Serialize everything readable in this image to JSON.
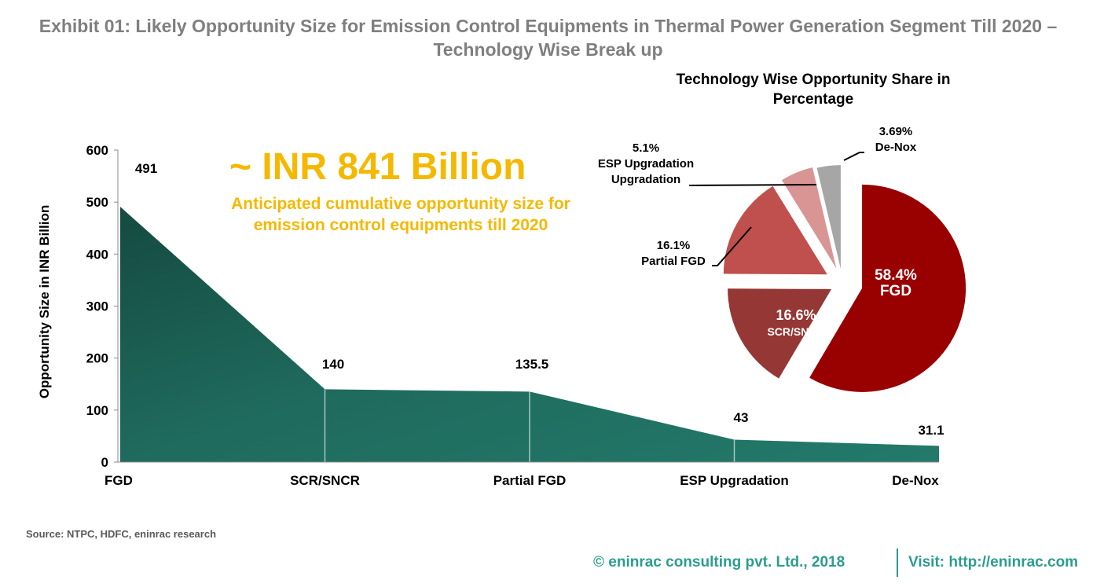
{
  "title": "Exhibit 01: Likely Opportunity Size for Emission Control Equipments in Thermal Power Generation Segment Till 2020 – Technology Wise Break up",
  "headline": "~ INR 841 Billion",
  "subheadline": "Anticipated cumulative opportunity size for emission control equipments till 2020",
  "source": "Source: NTPC, HDFC, eninrac research",
  "footer": {
    "copyright": "© eninrac consulting pvt. Ltd., 2018",
    "visit": "Visit: http://eninrac.com"
  },
  "chart_data": [
    {
      "type": "area",
      "categories": [
        "FGD",
        "SCR/SNCR",
        "Partial FGD",
        "ESP Upgradation",
        "De-Nox"
      ],
      "values": [
        491,
        140,
        135.5,
        43,
        31.1
      ],
      "data_labels": [
        "491",
        "140",
        "135.5",
        "43",
        "31.1"
      ],
      "ylabel": "Opportunity Size in INR Billion",
      "ylim": [
        0,
        600
      ],
      "yticks": [
        "0",
        "100",
        "200",
        "300",
        "400",
        "500",
        "600"
      ],
      "color": "#1f6b5e"
    },
    {
      "type": "pie",
      "title": "Technology Wise Opportunity Share in Percentage",
      "slices": [
        {
          "label": "FGD",
          "value": 58.4,
          "pct": "58.4%",
          "color": "#990000"
        },
        {
          "label": "SCR/SNCR",
          "value": 16.6,
          "pct": "16.6%",
          "color": "#953735"
        },
        {
          "label": "Partial FGD",
          "value": 16.1,
          "pct": "16.1%",
          "color": "#c0504d"
        },
        {
          "label": "ESP Upgradation",
          "value": 5.1,
          "pct": "5.1%",
          "color": "#d99594"
        },
        {
          "label": "De-Nox",
          "value": 3.69,
          "pct": "3.69%",
          "color": "#a6a6a6"
        }
      ]
    }
  ]
}
